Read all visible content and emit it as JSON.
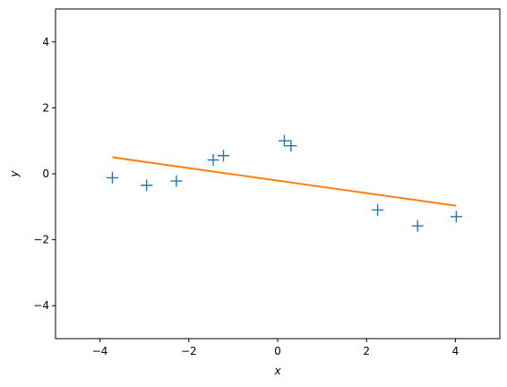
{
  "chart_data": {
    "type": "scatter",
    "xlabel": "x",
    "ylabel": "y",
    "xlim": [
      -5,
      5
    ],
    "ylim": [
      -5,
      5
    ],
    "grid": false,
    "legend": "none",
    "xticks": [
      "−4",
      "−2",
      "0",
      "2",
      "4"
    ],
    "yticks": [
      "−4",
      "−2",
      "0",
      "2",
      "4"
    ],
    "series": [
      {
        "kind": "scatter",
        "marker": "plus",
        "color": "#1f77b4",
        "points": [
          {
            "x": -3.72,
            "y": -0.12
          },
          {
            "x": -2.95,
            "y": -0.35
          },
          {
            "x": -2.28,
            "y": -0.22
          },
          {
            "x": -1.45,
            "y": 0.42
          },
          {
            "x": -1.22,
            "y": 0.55
          },
          {
            "x": 0.15,
            "y": 1.0
          },
          {
            "x": 0.3,
            "y": 0.85
          },
          {
            "x": 2.25,
            "y": -1.1
          },
          {
            "x": 3.15,
            "y": -1.58
          },
          {
            "x": 4.02,
            "y": -1.3
          }
        ]
      },
      {
        "kind": "line",
        "color": "#ff7f0e",
        "points": [
          {
            "x": -3.72,
            "y": 0.5
          },
          {
            "x": 4.02,
            "y": -0.97
          }
        ]
      }
    ]
  }
}
